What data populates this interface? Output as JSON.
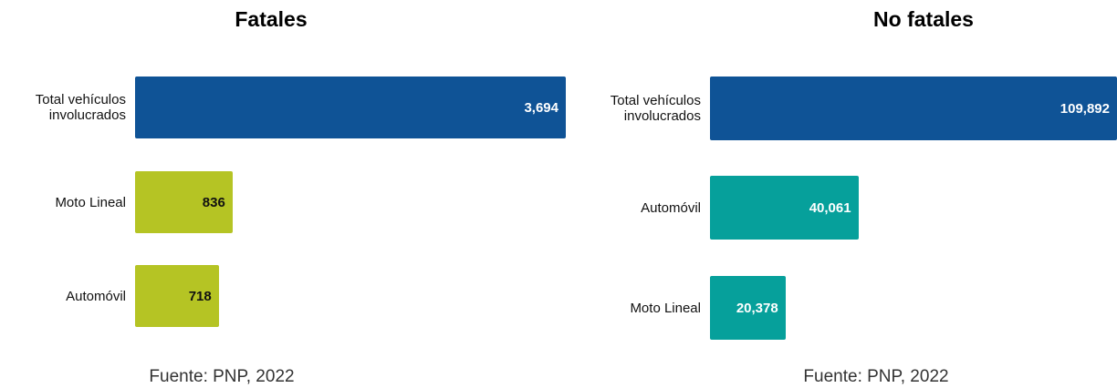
{
  "chart_data": [
    {
      "type": "bar",
      "title": "Fatales",
      "categories": [
        "Total vehículos involucrados",
        "Moto Lineal",
        "Automóvil"
      ],
      "values": [
        3694,
        836,
        718
      ],
      "value_labels": [
        "3,694",
        "836",
        "718"
      ],
      "colors": [
        "#0f5396",
        "#b5c424",
        "#b5c424"
      ],
      "source": "Fuente: PNP, 2022"
    },
    {
      "type": "bar",
      "title": "No fatales",
      "categories": [
        "Total vehículos involucrados",
        "Automóvil",
        "Moto Lineal"
      ],
      "values": [
        109892,
        40061,
        20378
      ],
      "value_labels": [
        "109,892",
        "40,061",
        "20,378"
      ],
      "colors": [
        "#0f5396",
        "#06a09b",
        "#06a09b"
      ],
      "source": "Fuente: PNP, 2022"
    }
  ]
}
